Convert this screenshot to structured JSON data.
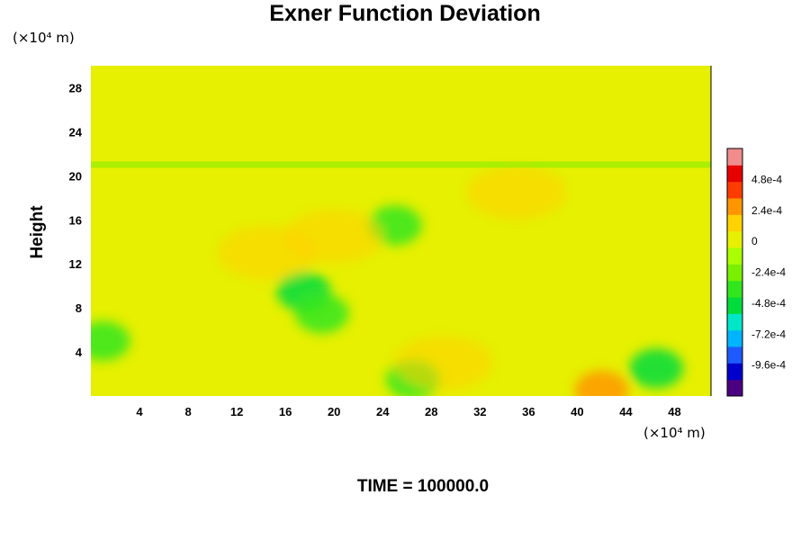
{
  "chart_data": {
    "type": "heatmap",
    "title": "Exner Function Deviation",
    "xlabel": "",
    "ylabel": "Height",
    "x_unit": "(×10⁴ m)",
    "y_unit": "(×10⁴ m)",
    "x_ticks": [
      4,
      8,
      12,
      16,
      20,
      24,
      28,
      32,
      36,
      40,
      44,
      48
    ],
    "y_ticks": [
      4,
      8,
      12,
      16,
      20,
      24,
      28
    ],
    "xlim": [
      0,
      51
    ],
    "ylim": [
      0,
      30
    ],
    "colorbar": {
      "labels": [
        "4.8e-4",
        "2.4e-4",
        "0",
        "-2.4e-4",
        "-4.8e-4",
        "-7.2e-4",
        "-9.6e-4"
      ],
      "values": [
        0.00048,
        0.00024,
        0,
        -0.00024,
        -0.00048,
        -0.00072,
        -0.00096
      ],
      "range": [
        -0.0012,
        0.00072
      ],
      "colors": [
        "#4b0082",
        "#0000cd",
        "#1e5aff",
        "#00b4ff",
        "#00e6c8",
        "#00dc3c",
        "#32e61e",
        "#78f000",
        "#aaff00",
        "#e6f000",
        "#ffd200",
        "#ff9600",
        "#ff3c00",
        "#e60000",
        "#f08c8c"
      ]
    },
    "background_value": 4e-05,
    "features": [
      {
        "x": 1,
        "y": 5,
        "value": -0.00032
      },
      {
        "x": 17.5,
        "y": 9.5,
        "value": -0.0005
      },
      {
        "x": 19,
        "y": 7.5,
        "value": -0.0004
      },
      {
        "x": 25,
        "y": 15.5,
        "value": -0.0004
      },
      {
        "x": 26.5,
        "y": 1.5,
        "value": -0.00035
      },
      {
        "x": 46.5,
        "y": 2.5,
        "value": -0.0005
      },
      {
        "x": 42,
        "y": 0.5,
        "value": 0.00024
      },
      {
        "x": 35,
        "y": 18.5,
        "value": 0.00012
      },
      {
        "x": 20,
        "y": 14.5,
        "value": 0.0001
      },
      {
        "x": 14.5,
        "y": 13,
        "value": 8e-05
      },
      {
        "x": 29,
        "y": 3,
        "value": 8e-05
      },
      {
        "x": 34,
        "y": 8,
        "value": 7e-05
      }
    ]
  },
  "footer": {
    "time_label": "TIME = 100000.0"
  }
}
